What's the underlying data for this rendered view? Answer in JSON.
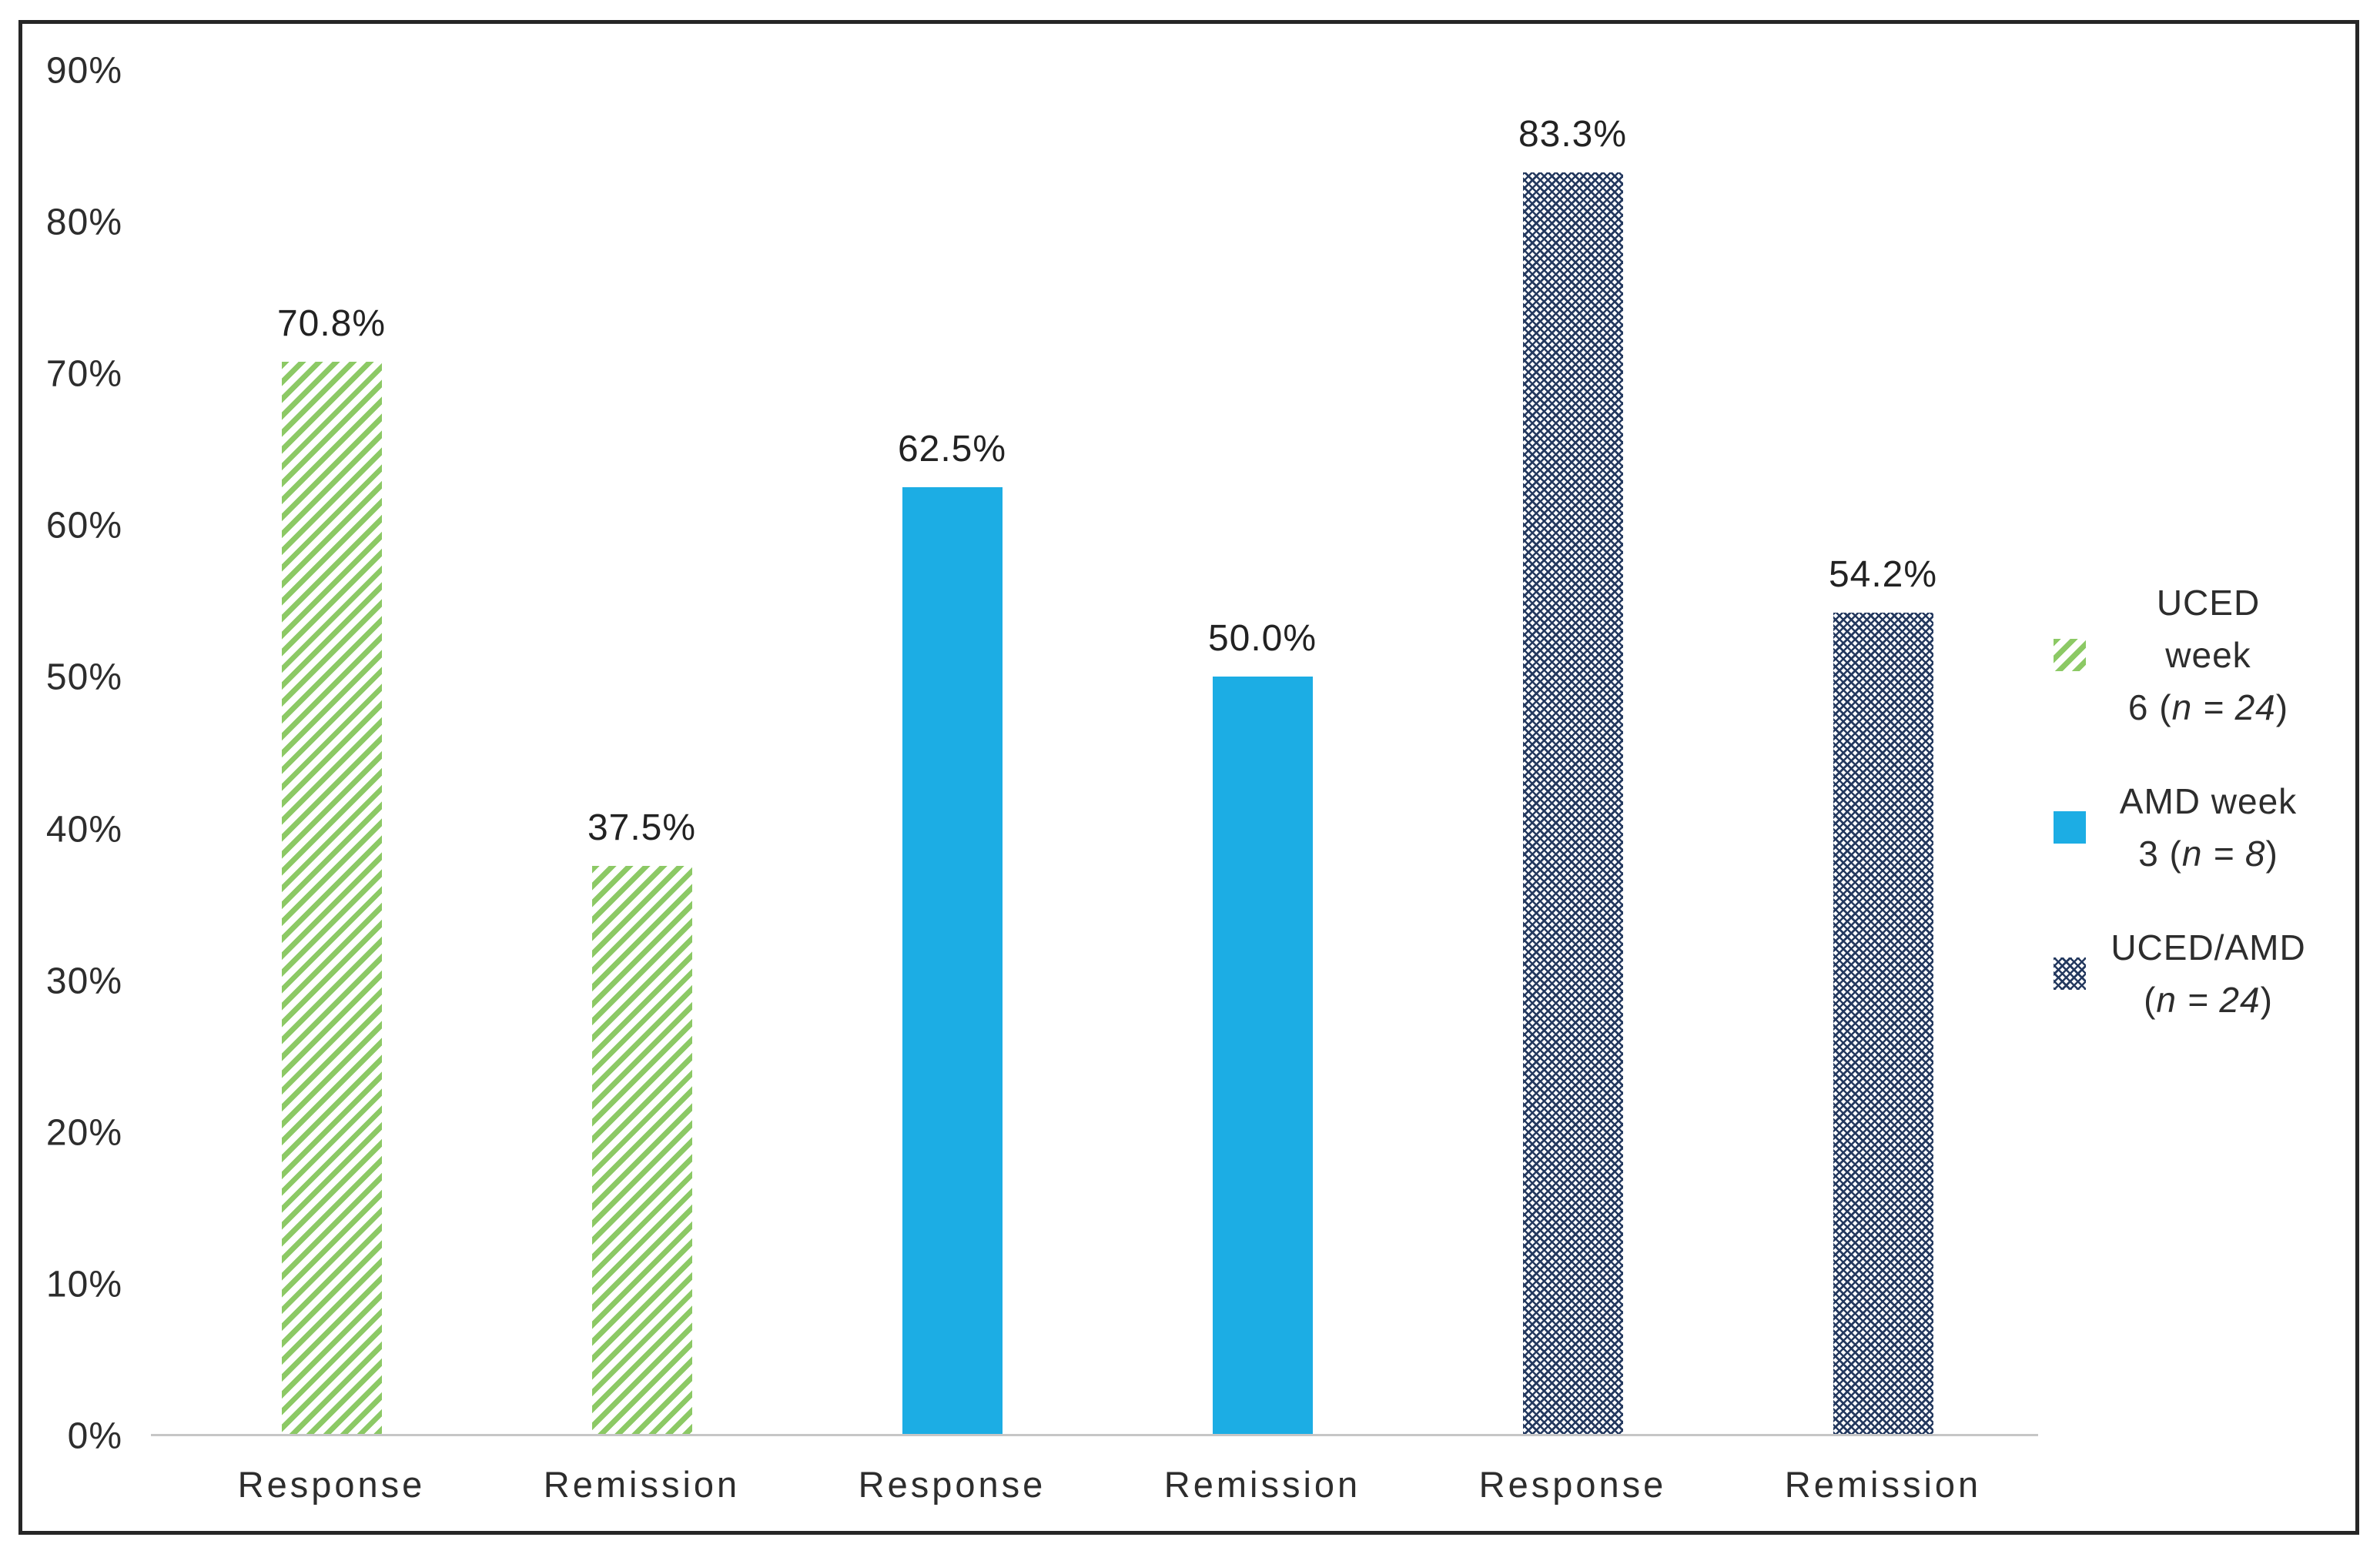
{
  "figure": {
    "background": "#ffffff",
    "border_color": "#262626"
  },
  "colors": {
    "green_hatch": "#8cc965",
    "blue_solid": "#1cade4",
    "navy_crosshatch": "#24395f",
    "axis_line": "#c6c6c6",
    "text": "#2d2d2d"
  },
  "y_axis": {
    "ticks": [
      {
        "label": "90%",
        "value": 90
      },
      {
        "label": "80%",
        "value": 80
      },
      {
        "label": "70%",
        "value": 70
      },
      {
        "label": "60%",
        "value": 60
      },
      {
        "label": "50%",
        "value": 50
      },
      {
        "label": "40%",
        "value": 40
      },
      {
        "label": "30%",
        "value": 30
      },
      {
        "label": "20%",
        "value": 20
      },
      {
        "label": "10%",
        "value": 10
      },
      {
        "label": "0%",
        "value": 0
      }
    ]
  },
  "legend": [
    {
      "line1": "UCED week",
      "line2_pre": "6 (",
      "line2_italic": "n = 24",
      "line2_post": ")",
      "pattern": "green-hatch"
    },
    {
      "line1": "AMD week",
      "line2_pre": "3 (",
      "line2_italic": "n = 8",
      "line2_post": ")",
      "pattern": "blue-solid"
    },
    {
      "line1": "UCED/AMD",
      "line2_pre": "(",
      "line2_italic": "n = 24",
      "line2_post": ")",
      "pattern": "navy-crosshatch"
    }
  ],
  "chart_data": {
    "type": "bar",
    "categories": [
      "Response",
      "Remission",
      "Response",
      "Remission",
      "Response",
      "Remission"
    ],
    "series": [
      {
        "name": "UCED week 6 (n = 24)",
        "pattern": "green-hatch",
        "categories": [
          "Response",
          "Remission"
        ],
        "values": [
          70.8,
          37.5
        ]
      },
      {
        "name": "AMD week 3 (n = 8)",
        "pattern": "blue-solid",
        "categories": [
          "Response",
          "Remission"
        ],
        "values": [
          62.5,
          50.0
        ]
      },
      {
        "name": "UCED/AMD (n = 24)",
        "pattern": "navy-crosshatch",
        "categories": [
          "Response",
          "Remission"
        ],
        "values": [
          83.3,
          54.2
        ]
      }
    ],
    "data_labels": [
      "70.8%",
      "37.5%",
      "62.5%",
      "50.0%",
      "83.3%",
      "54.2%"
    ],
    "title": "",
    "xlabel": "",
    "ylabel": "",
    "ylim": [
      0,
      90
    ],
    "ytick_format": "percent",
    "grid": false,
    "legend_position": "right"
  }
}
